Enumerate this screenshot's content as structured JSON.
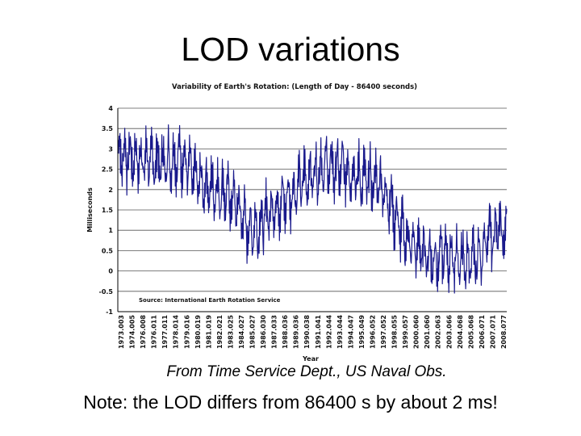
{
  "slide": {
    "title": "LOD variations",
    "caption": "From Time Service Dept., US Naval Obs.",
    "note": "Note: the LOD differs from 86400 s by about 2 ms!"
  },
  "chart_data": {
    "type": "line",
    "title": "Variability of Earth's Rotation: (Length of Day - 86400 seconds)",
    "xlabel": "Year",
    "ylabel": "Milliseconds",
    "ylim": [
      -1,
      4
    ],
    "y_ticks": [
      "4",
      "3.5",
      "3",
      "2.5",
      "2",
      "1.5",
      "1",
      "0.5",
      "0",
      "-0.5",
      "-1"
    ],
    "grid": "horizontal",
    "line_color": "#1a1a8c",
    "annotation": "Source: International Earth Rotation Service",
    "x_ticks": [
      "1973.003",
      "1974.005",
      "1976.008",
      "1976.011",
      "1977.011",
      "1978.014",
      "1979.016",
      "1980.019",
      "1981.019",
      "1982.021",
      "1983.025",
      "1984.027",
      "1985.027",
      "1986.030",
      "1987.033",
      "1988.036",
      "1989.036",
      "1990.038",
      "1991.041",
      "1992.044",
      "1993.044",
      "1994.047",
      "1995.049",
      "1996.052",
      "1997.052",
      "1998.055",
      "1999.057",
      "2000.060",
      "2001.060",
      "2002.063",
      "2003.066",
      "2004.068",
      "2005.068",
      "2006.071",
      "2007.071",
      "2008.077"
    ],
    "series": [
      {
        "x": [
          1973.0,
          1974.0,
          1975.0,
          1976.0,
          1977.0,
          1978.0,
          1979.0,
          1980.0,
          1981.0,
          1982.0,
          1983.0,
          1984.0,
          1985.0,
          1986.0,
          1987.0,
          1988.0,
          1989.0,
          1990.0,
          1991.0,
          1992.0,
          1993.0,
          1994.0,
          1995.0,
          1996.0,
          1997.0,
          1998.0,
          1999.0,
          2000.0,
          2001.0,
          2002.0,
          2003.0,
          2004.0,
          2005.0,
          2006.0,
          2007.0,
          2008.0,
          2008.7
        ],
        "y": [
          2.9,
          2.8,
          2.75,
          2.7,
          2.65,
          2.75,
          2.8,
          2.3,
          2.1,
          2.0,
          1.9,
          1.6,
          1.0,
          1.1,
          1.5,
          1.7,
          1.9,
          2.2,
          2.4,
          2.6,
          2.5,
          2.5,
          2.3,
          2.2,
          2.2,
          1.7,
          1.0,
          0.6,
          0.5,
          0.3,
          0.4,
          0.3,
          0.2,
          0.3,
          0.8,
          1.0,
          0.9
        ]
      }
    ]
  }
}
